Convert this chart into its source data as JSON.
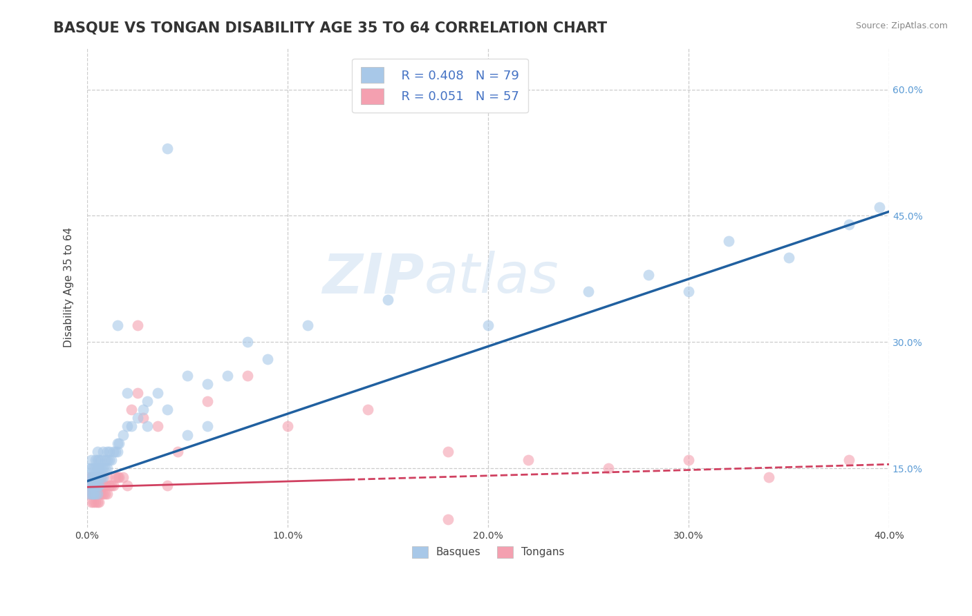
{
  "title": "BASQUE VS TONGAN DISABILITY AGE 35 TO 64 CORRELATION CHART",
  "source": "Source: ZipAtlas.com",
  "ylabel": "Disability Age 35 to 64",
  "xlim": [
    0.0,
    0.4
  ],
  "ylim": [
    0.08,
    0.65
  ],
  "xticks": [
    0.0,
    0.1,
    0.2,
    0.3,
    0.4
  ],
  "xtick_labels": [
    "0.0%",
    "10.0%",
    "20.0%",
    "30.0%",
    "40.0%"
  ],
  "ytick_labels_right": [
    "15.0%",
    "30.0%",
    "45.0%",
    "60.0%"
  ],
  "yticks_right": [
    0.15,
    0.3,
    0.45,
    0.6
  ],
  "basque_R": 0.408,
  "basque_N": 79,
  "tongan_R": 0.051,
  "tongan_N": 57,
  "basque_color": "#a8c8e8",
  "tongan_color": "#f4a0b0",
  "basque_line_color": "#2060a0",
  "tongan_line_color": "#d04060",
  "background_color": "#ffffff",
  "grid_color": "#cccccc",
  "title_fontsize": 15,
  "axis_label_fontsize": 11,
  "watermark_color": "#c8dcf0",
  "basque_x": [
    0.001,
    0.001,
    0.001,
    0.001,
    0.002,
    0.002,
    0.002,
    0.002,
    0.002,
    0.003,
    0.003,
    0.003,
    0.003,
    0.003,
    0.003,
    0.003,
    0.004,
    0.004,
    0.004,
    0.004,
    0.004,
    0.005,
    0.005,
    0.005,
    0.005,
    0.005,
    0.005,
    0.006,
    0.006,
    0.006,
    0.006,
    0.007,
    0.007,
    0.007,
    0.008,
    0.008,
    0.008,
    0.009,
    0.009,
    0.01,
    0.01,
    0.01,
    0.011,
    0.011,
    0.012,
    0.013,
    0.014,
    0.015,
    0.015,
    0.016,
    0.018,
    0.02,
    0.022,
    0.025,
    0.028,
    0.03,
    0.035,
    0.04,
    0.05,
    0.06,
    0.07,
    0.09,
    0.11,
    0.15,
    0.2,
    0.25,
    0.28,
    0.3,
    0.32,
    0.35,
    0.38,
    0.395,
    0.05,
    0.08,
    0.03,
    0.06,
    0.015,
    0.02,
    0.04
  ],
  "basque_y": [
    0.12,
    0.13,
    0.14,
    0.15,
    0.12,
    0.13,
    0.14,
    0.15,
    0.16,
    0.12,
    0.13,
    0.14,
    0.15,
    0.12,
    0.13,
    0.14,
    0.12,
    0.13,
    0.14,
    0.15,
    0.16,
    0.12,
    0.13,
    0.14,
    0.15,
    0.16,
    0.17,
    0.13,
    0.14,
    0.15,
    0.16,
    0.14,
    0.15,
    0.16,
    0.14,
    0.15,
    0.17,
    0.15,
    0.16,
    0.15,
    0.16,
    0.17,
    0.16,
    0.17,
    0.16,
    0.17,
    0.17,
    0.17,
    0.18,
    0.18,
    0.19,
    0.2,
    0.2,
    0.21,
    0.22,
    0.23,
    0.24,
    0.22,
    0.19,
    0.2,
    0.26,
    0.28,
    0.32,
    0.35,
    0.32,
    0.36,
    0.38,
    0.36,
    0.42,
    0.4,
    0.44,
    0.46,
    0.26,
    0.3,
    0.2,
    0.25,
    0.32,
    0.24,
    0.53
  ],
  "tongan_x": [
    0.001,
    0.001,
    0.001,
    0.002,
    0.002,
    0.002,
    0.002,
    0.003,
    0.003,
    0.003,
    0.003,
    0.004,
    0.004,
    0.004,
    0.004,
    0.005,
    0.005,
    0.005,
    0.005,
    0.006,
    0.006,
    0.006,
    0.007,
    0.007,
    0.007,
    0.008,
    0.008,
    0.009,
    0.009,
    0.01,
    0.01,
    0.011,
    0.012,
    0.013,
    0.014,
    0.015,
    0.016,
    0.018,
    0.02,
    0.022,
    0.025,
    0.028,
    0.035,
    0.045,
    0.06,
    0.08,
    0.1,
    0.14,
    0.18,
    0.22,
    0.26,
    0.3,
    0.34,
    0.38,
    0.025,
    0.04,
    0.18
  ],
  "tongan_y": [
    0.12,
    0.13,
    0.14,
    0.11,
    0.12,
    0.13,
    0.14,
    0.11,
    0.12,
    0.13,
    0.14,
    0.11,
    0.12,
    0.13,
    0.14,
    0.11,
    0.12,
    0.13,
    0.14,
    0.11,
    0.12,
    0.13,
    0.12,
    0.13,
    0.14,
    0.12,
    0.13,
    0.12,
    0.13,
    0.12,
    0.14,
    0.13,
    0.13,
    0.13,
    0.14,
    0.14,
    0.14,
    0.14,
    0.13,
    0.22,
    0.24,
    0.21,
    0.2,
    0.17,
    0.23,
    0.26,
    0.2,
    0.22,
    0.17,
    0.16,
    0.15,
    0.16,
    0.14,
    0.16,
    0.32,
    0.13,
    0.09
  ],
  "blue_line_x0": 0.0,
  "blue_line_y0": 0.135,
  "blue_line_x1": 0.4,
  "blue_line_y1": 0.455,
  "pink_line_x0": 0.0,
  "pink_line_y0": 0.128,
  "pink_line_x1": 0.4,
  "pink_line_y1": 0.155
}
